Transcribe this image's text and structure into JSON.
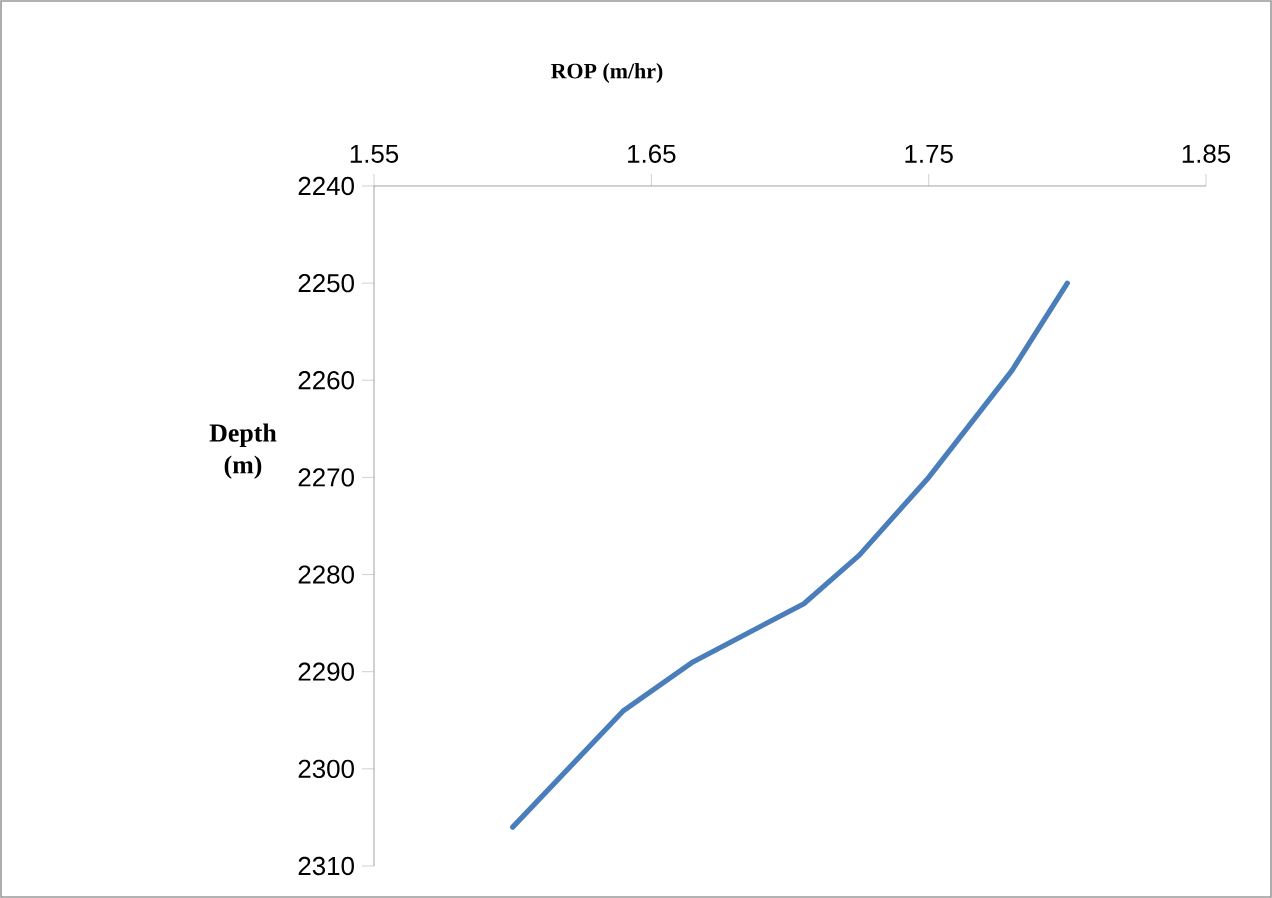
{
  "chart_data": {
    "type": "line",
    "xlabel": "ROP (m/hr)",
    "ylabel": "Depth (m)",
    "x": [
      1.8,
      1.78,
      1.75,
      1.725,
      1.705,
      1.665,
      1.64,
      1.6
    ],
    "series": [
      {
        "color": "#4a7ebb",
        "line_style": "solid",
        "values": [
          2250,
          2259,
          2270,
          2278,
          2283,
          2289,
          2294,
          2306
        ]
      }
    ],
    "xlim": [
      1.55,
      1.85
    ],
    "xticks": [
      1.55,
      1.65,
      1.75,
      1.85
    ],
    "ylim": [
      2310,
      2240
    ],
    "yticks": [
      2240,
      2250,
      2260,
      2270,
      2280,
      2290,
      2300,
      2310
    ]
  }
}
